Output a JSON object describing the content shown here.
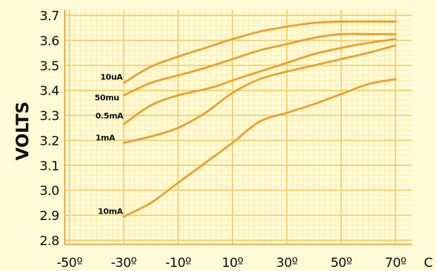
{
  "chart_data": {
    "type": "line",
    "ylabel": "VOLTS",
    "xlabel": "",
    "x_unit_label": "C",
    "xlim": [
      -50,
      70
    ],
    "ylim": [
      2.8,
      3.7
    ],
    "x_ticks": [
      -50,
      -30,
      -10,
      10,
      30,
      50,
      70
    ],
    "x_tick_labels": [
      "-50º",
      "-30º",
      "-10º",
      "10º",
      "30º",
      "50º",
      "70º"
    ],
    "y_ticks": [
      2.8,
      2.9,
      3.0,
      3.1,
      3.2,
      3.3,
      3.4,
      3.5,
      3.6,
      3.7
    ],
    "y_tick_labels": [
      "2.8",
      "2.9",
      "3.0",
      "3.1",
      "3.2",
      "3.3",
      "3.4",
      "3.5",
      "3.6",
      "3.7"
    ],
    "grid": true,
    "line_color": "#f0a030",
    "grid_color": "#f5c862",
    "background": "#fffbd6",
    "series": [
      {
        "name": "10uA",
        "x": [
          -30,
          -20,
          -10,
          0,
          10,
          20,
          30,
          40,
          50,
          60,
          70
        ],
        "y": [
          3.43,
          3.495,
          3.535,
          3.57,
          3.605,
          3.635,
          3.655,
          3.67,
          3.675,
          3.675,
          3.675
        ]
      },
      {
        "name": "50mu",
        "x": [
          -30,
          -20,
          -10,
          0,
          10,
          20,
          30,
          40,
          50,
          60,
          70
        ],
        "y": [
          3.38,
          3.43,
          3.46,
          3.49,
          3.525,
          3.56,
          3.585,
          3.61,
          3.625,
          3.625,
          3.625
        ]
      },
      {
        "name": "0.5mA",
        "x": [
          -30,
          -20,
          -10,
          0,
          5,
          10,
          20,
          30,
          40,
          50,
          60,
          70
        ],
        "y": [
          3.265,
          3.34,
          3.38,
          3.405,
          3.42,
          3.44,
          3.475,
          3.51,
          3.545,
          3.57,
          3.59,
          3.605
        ]
      },
      {
        "name": "1mA",
        "x": [
          -30,
          -20,
          -10,
          0,
          10,
          20,
          30,
          40,
          50,
          60,
          70
        ],
        "y": [
          3.19,
          3.215,
          3.25,
          3.31,
          3.39,
          3.445,
          3.475,
          3.5,
          3.525,
          3.55,
          3.58
        ]
      },
      {
        "name": "10mA",
        "x": [
          -30,
          -20,
          -10,
          0,
          10,
          20,
          30,
          40,
          50,
          60,
          70
        ],
        "y": [
          2.895,
          2.95,
          3.03,
          3.11,
          3.19,
          3.275,
          3.31,
          3.345,
          3.385,
          3.425,
          3.445
        ]
      }
    ]
  }
}
